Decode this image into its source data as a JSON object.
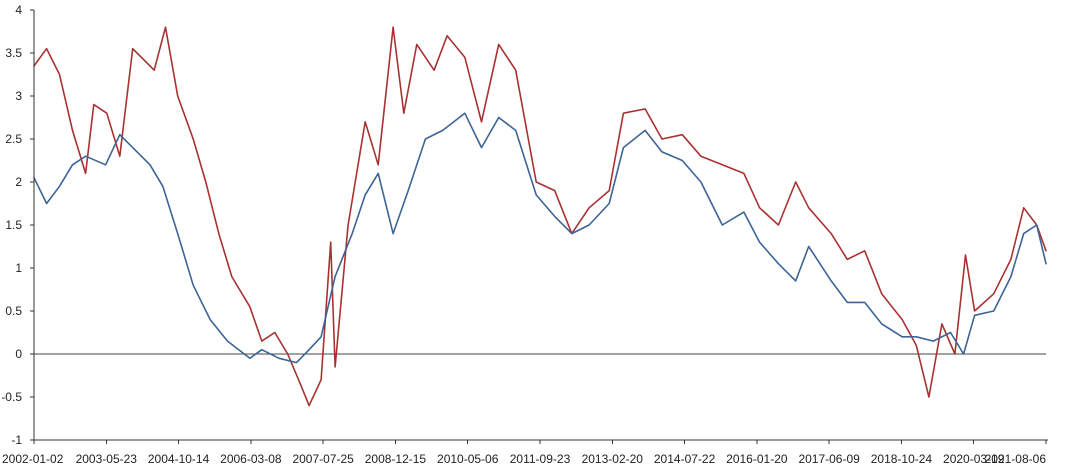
{
  "chart_data": {
    "type": "line",
    "title": "",
    "xlabel": "",
    "ylabel": "",
    "ylim": [
      -1,
      4
    ],
    "yticks": [
      -1,
      -0.5,
      0,
      0.5,
      1,
      1.5,
      2,
      2.5,
      3,
      3.5,
      4
    ],
    "ytick_labels": [
      "-1",
      "-0.5",
      "0",
      "0.5",
      "1",
      "1.5",
      "2",
      "2.5",
      "3",
      "3.5",
      "4"
    ],
    "x_start": "2002-01-02",
    "x_end": "2021-08-06",
    "xtick_labels": [
      "2002-01-02",
      "2003-05-23",
      "2004-10-14",
      "2006-03-08",
      "2007-07-25",
      "2008-12-15",
      "2010-05-06",
      "2011-09-23",
      "2013-02-20",
      "2014-07-22",
      "2016-01-20",
      "2017-06-09",
      "2018-10-24",
      "2020-03-19",
      "2021-08-06"
    ],
    "grid": false,
    "reference_line_y": 0,
    "series": [
      {
        "color": "#a83232",
        "points": [
          [
            "2002-01-02",
            3.35
          ],
          [
            "2002-04-01",
            3.55
          ],
          [
            "2002-07-01",
            3.25
          ],
          [
            "2002-10-01",
            2.6
          ],
          [
            "2003-01-02",
            2.1
          ],
          [
            "2003-03-01",
            2.9
          ],
          [
            "2003-06-01",
            2.8
          ],
          [
            "2003-09-01",
            2.3
          ],
          [
            "2003-12-01",
            3.55
          ],
          [
            "2004-03-01",
            3.4
          ],
          [
            "2004-05-01",
            3.3
          ],
          [
            "2004-07-20",
            3.8
          ],
          [
            "2004-10-14",
            3.0
          ],
          [
            "2005-02-01",
            2.5
          ],
          [
            "2005-05-01",
            2.0
          ],
          [
            "2005-08-01",
            1.4
          ],
          [
            "2005-11-01",
            0.9
          ],
          [
            "2006-03-08",
            0.55
          ],
          [
            "2006-06-01",
            0.15
          ],
          [
            "2006-09-01",
            0.25
          ],
          [
            "2006-12-01",
            0.0
          ],
          [
            "2007-03-01",
            -0.35
          ],
          [
            "2007-05-01",
            -0.6
          ],
          [
            "2007-07-25",
            -0.3
          ],
          [
            "2007-10-01",
            1.3
          ],
          [
            "2007-11-01",
            -0.15
          ],
          [
            "2008-02-01",
            1.5
          ],
          [
            "2008-06-01",
            2.7
          ],
          [
            "2008-09-01",
            2.2
          ],
          [
            "2008-12-15",
            3.8
          ],
          [
            "2009-03-01",
            2.8
          ],
          [
            "2009-06-01",
            3.6
          ],
          [
            "2009-10-01",
            3.3
          ],
          [
            "2010-01-01",
            3.7
          ],
          [
            "2010-05-06",
            3.45
          ],
          [
            "2010-09-01",
            2.7
          ],
          [
            "2011-01-01",
            3.6
          ],
          [
            "2011-05-01",
            3.3
          ],
          [
            "2011-09-23",
            2.0
          ],
          [
            "2012-02-01",
            1.9
          ],
          [
            "2012-06-01",
            1.4
          ],
          [
            "2012-10-01",
            1.7
          ],
          [
            "2013-02-20",
            1.9
          ],
          [
            "2013-06-01",
            2.8
          ],
          [
            "2013-11-01",
            2.85
          ],
          [
            "2014-03-01",
            2.5
          ],
          [
            "2014-07-22",
            2.55
          ],
          [
            "2014-12-01",
            2.3
          ],
          [
            "2015-05-01",
            2.2
          ],
          [
            "2015-10-01",
            2.1
          ],
          [
            "2016-01-20",
            1.7
          ],
          [
            "2016-06-01",
            1.5
          ],
          [
            "2016-10-01",
            2.0
          ],
          [
            "2017-01-01",
            1.7
          ],
          [
            "2017-06-09",
            1.4
          ],
          [
            "2017-10-01",
            1.1
          ],
          [
            "2018-02-01",
            1.2
          ],
          [
            "2018-06-01",
            0.7
          ],
          [
            "2018-10-24",
            0.4
          ],
          [
            "2019-02-01",
            0.1
          ],
          [
            "2019-05-01",
            -0.5
          ],
          [
            "2019-08-01",
            0.35
          ],
          [
            "2019-11-01",
            0.0
          ],
          [
            "2020-01-15",
            1.15
          ],
          [
            "2020-03-19",
            0.5
          ],
          [
            "2020-08-01",
            0.7
          ],
          [
            "2020-12-01",
            1.1
          ],
          [
            "2021-03-01",
            1.7
          ],
          [
            "2021-06-01",
            1.5
          ],
          [
            "2021-08-06",
            1.2
          ]
        ]
      },
      {
        "color": "#3c6496",
        "points": [
          [
            "2002-01-02",
            2.05
          ],
          [
            "2002-04-01",
            1.75
          ],
          [
            "2002-07-01",
            1.95
          ],
          [
            "2002-10-01",
            2.2
          ],
          [
            "2003-01-02",
            2.3
          ],
          [
            "2003-05-23",
            2.2
          ],
          [
            "2003-09-01",
            2.55
          ],
          [
            "2003-12-01",
            2.4
          ],
          [
            "2004-04-01",
            2.2
          ],
          [
            "2004-07-01",
            1.95
          ],
          [
            "2004-10-14",
            1.4
          ],
          [
            "2005-02-01",
            0.8
          ],
          [
            "2005-06-01",
            0.4
          ],
          [
            "2005-10-01",
            0.15
          ],
          [
            "2006-03-08",
            -0.05
          ],
          [
            "2006-06-01",
            0.05
          ],
          [
            "2006-10-01",
            -0.05
          ],
          [
            "2007-02-01",
            -0.1
          ],
          [
            "2007-05-01",
            0.05
          ],
          [
            "2007-07-25",
            0.2
          ],
          [
            "2007-11-01",
            0.9
          ],
          [
            "2008-03-01",
            1.4
          ],
          [
            "2008-06-01",
            1.85
          ],
          [
            "2008-09-01",
            2.1
          ],
          [
            "2008-12-15",
            1.4
          ],
          [
            "2009-04-01",
            1.9
          ],
          [
            "2009-08-01",
            2.5
          ],
          [
            "2009-12-01",
            2.6
          ],
          [
            "2010-05-06",
            2.8
          ],
          [
            "2010-09-01",
            2.4
          ],
          [
            "2011-01-01",
            2.75
          ],
          [
            "2011-05-01",
            2.6
          ],
          [
            "2011-09-23",
            1.85
          ],
          [
            "2012-02-01",
            1.6
          ],
          [
            "2012-06-01",
            1.4
          ],
          [
            "2012-10-01",
            1.5
          ],
          [
            "2013-02-20",
            1.75
          ],
          [
            "2013-06-01",
            2.4
          ],
          [
            "2013-11-01",
            2.6
          ],
          [
            "2014-03-01",
            2.35
          ],
          [
            "2014-07-22",
            2.25
          ],
          [
            "2014-12-01",
            2.0
          ],
          [
            "2015-05-01",
            1.5
          ],
          [
            "2015-10-01",
            1.65
          ],
          [
            "2016-01-20",
            1.3
          ],
          [
            "2016-06-01",
            1.05
          ],
          [
            "2016-10-01",
            0.85
          ],
          [
            "2017-01-01",
            1.25
          ],
          [
            "2017-06-09",
            0.85
          ],
          [
            "2017-10-01",
            0.6
          ],
          [
            "2018-02-01",
            0.6
          ],
          [
            "2018-06-01",
            0.35
          ],
          [
            "2018-10-24",
            0.2
          ],
          [
            "2019-02-01",
            0.2
          ],
          [
            "2019-06-01",
            0.15
          ],
          [
            "2019-10-01",
            0.25
          ],
          [
            "2020-01-01",
            0.0
          ],
          [
            "2020-03-19",
            0.45
          ],
          [
            "2020-08-01",
            0.5
          ],
          [
            "2020-12-01",
            0.9
          ],
          [
            "2021-03-01",
            1.4
          ],
          [
            "2021-06-01",
            1.5
          ],
          [
            "2021-08-06",
            1.05
          ]
        ]
      }
    ]
  }
}
